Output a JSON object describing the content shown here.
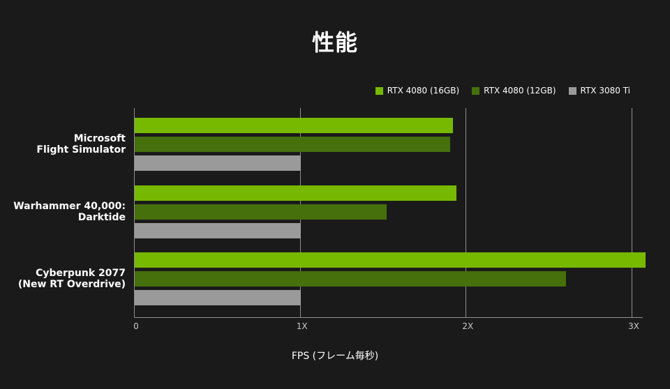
{
  "title": "性能",
  "colors": {
    "background": "#1a1a1a",
    "series_green_bright": "#76b900",
    "series_green_dark": "#45700c",
    "series_gray": "#9a9a9a",
    "gridline": "#8f8f8f",
    "tick_text": "#c9c9c9",
    "text": "#ffffff"
  },
  "chart_data": {
    "type": "bar",
    "orientation": "horizontal",
    "title": "性能",
    "xlabel": "FPS (フレーム毎秒)",
    "categories": [
      "Microsoft\nFlight Simulator",
      "Warhammer 40,000:\nDarktide",
      "Cyberpunk 2077\n(New RT Overdrive)"
    ],
    "series": [
      {
        "name": "RTX 4080 (16GB)",
        "color": "#76b900",
        "values": [
          1.92,
          1.94,
          3.08
        ]
      },
      {
        "name": "RTX 4080 (12GB)",
        "color": "#45700c",
        "values": [
          1.9,
          1.52,
          2.6
        ]
      },
      {
        "name": "RTX 3080 Ti",
        "color": "#9a9a9a",
        "values": [
          1.0,
          1.0,
          1.0
        ]
      }
    ],
    "x_ticks": [
      {
        "value": 0,
        "label": "0"
      },
      {
        "value": 1,
        "label": "1X"
      },
      {
        "value": 2,
        "label": "2X"
      },
      {
        "value": 3,
        "label": "3X"
      }
    ],
    "xlim": [
      0,
      3
    ],
    "grid": "vertical",
    "legend_position": "top-right"
  }
}
